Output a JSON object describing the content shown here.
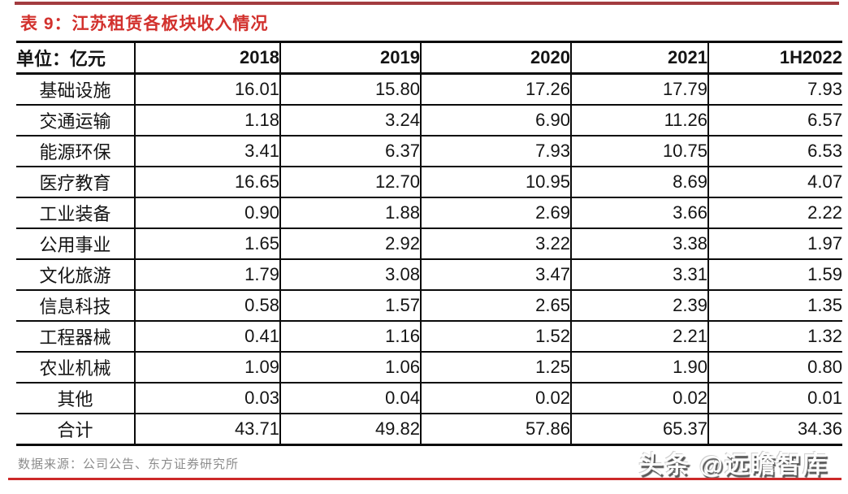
{
  "title": "表 9：江苏租赁各板块收入情况",
  "source": "数据来源：公司公告、东方证券研究所",
  "watermark": "头条 @远瞻智库",
  "colors": {
    "top_bar_red": "#a23b3f",
    "title_red": "#d2312d",
    "table_border_black": "#0a0a0a",
    "source_gray": "#8c8c8c",
    "bottom_line_red": "#cc2929",
    "watermark_white": "#fdfdfd"
  },
  "table": {
    "headers": [
      "单位：亿元",
      "2018",
      "2019",
      "2020",
      "2021",
      "1H2022"
    ],
    "rows": [
      {
        "label": "基础设施",
        "values": [
          "16.01",
          "15.80",
          "17.26",
          "17.79",
          "7.93"
        ]
      },
      {
        "label": "交通运输",
        "values": [
          "1.18",
          "3.24",
          "6.90",
          "11.26",
          "6.57"
        ]
      },
      {
        "label": "能源环保",
        "values": [
          "3.41",
          "6.37",
          "7.93",
          "10.75",
          "6.53"
        ]
      },
      {
        "label": "医疗教育",
        "values": [
          "16.65",
          "12.70",
          "10.95",
          "8.69",
          "4.07"
        ]
      },
      {
        "label": "工业装备",
        "values": [
          "0.90",
          "1.88",
          "2.69",
          "3.66",
          "2.22"
        ]
      },
      {
        "label": "公用事业",
        "values": [
          "1.65",
          "2.92",
          "3.22",
          "3.38",
          "1.97"
        ]
      },
      {
        "label": "文化旅游",
        "values": [
          "1.79",
          "3.08",
          "3.47",
          "3.31",
          "1.59"
        ]
      },
      {
        "label": "信息科技",
        "values": [
          "0.58",
          "1.57",
          "2.65",
          "2.39",
          "1.35"
        ]
      },
      {
        "label": "工程器械",
        "values": [
          "0.41",
          "1.16",
          "1.52",
          "2.21",
          "1.32"
        ]
      },
      {
        "label": "农业机械",
        "values": [
          "1.09",
          "1.06",
          "1.25",
          "1.90",
          "0.80"
        ]
      },
      {
        "label": "其他",
        "values": [
          "0.03",
          "0.04",
          "0.02",
          "0.02",
          "0.01"
        ]
      },
      {
        "label": "合计",
        "values": [
          "43.71",
          "49.82",
          "57.86",
          "65.37",
          "34.36"
        ]
      }
    ]
  },
  "chart_data": {
    "type": "table",
    "title": "表 9：江苏租赁各板块收入情况",
    "unit": "亿元",
    "categories": [
      "2018",
      "2019",
      "2020",
      "2021",
      "1H2022"
    ],
    "series": [
      {
        "name": "基础设施",
        "values": [
          16.01,
          15.8,
          17.26,
          17.79,
          7.93
        ]
      },
      {
        "name": "交通运输",
        "values": [
          1.18,
          3.24,
          6.9,
          11.26,
          6.57
        ]
      },
      {
        "name": "能源环保",
        "values": [
          3.41,
          6.37,
          7.93,
          10.75,
          6.53
        ]
      },
      {
        "name": "医疗教育",
        "values": [
          16.65,
          12.7,
          10.95,
          8.69,
          4.07
        ]
      },
      {
        "name": "工业装备",
        "values": [
          0.9,
          1.88,
          2.69,
          3.66,
          2.22
        ]
      },
      {
        "name": "公用事业",
        "values": [
          1.65,
          2.92,
          3.22,
          3.38,
          1.97
        ]
      },
      {
        "name": "文化旅游",
        "values": [
          1.79,
          3.08,
          3.47,
          3.31,
          1.59
        ]
      },
      {
        "name": "信息科技",
        "values": [
          0.58,
          1.57,
          2.65,
          2.39,
          1.35
        ]
      },
      {
        "name": "工程器械",
        "values": [
          0.41,
          1.16,
          1.52,
          2.21,
          1.32
        ]
      },
      {
        "name": "农业机械",
        "values": [
          1.09,
          1.06,
          1.25,
          1.9,
          0.8
        ]
      },
      {
        "name": "其他",
        "values": [
          0.03,
          0.04,
          0.02,
          0.02,
          0.01
        ]
      },
      {
        "name": "合计",
        "values": [
          43.71,
          49.82,
          57.86,
          65.37,
          34.36
        ]
      }
    ]
  }
}
